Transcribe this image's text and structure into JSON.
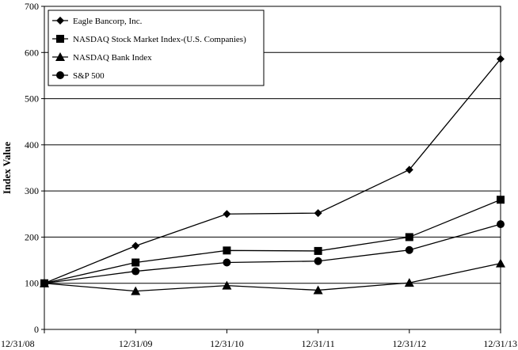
{
  "chart_data": {
    "type": "line",
    "title": "",
    "xlabel": "",
    "ylabel": "Index Value",
    "categories": [
      "12/31/08",
      "12/31/09",
      "12/31/10",
      "12/31/11",
      "12/31/12",
      "12/31/13"
    ],
    "ylim": [
      0,
      700
    ],
    "yticks": [
      0,
      100,
      200,
      300,
      400,
      500,
      600,
      700
    ],
    "grid": "horizontal",
    "legend_position": "top-left",
    "series": [
      {
        "name": "Eagle Bancorp, Inc.",
        "marker": "diamond",
        "values": [
          100,
          181,
          250,
          252,
          346,
          586
        ]
      },
      {
        "name": "NASDAQ Stock Market Index-(U.S. Companies)",
        "marker": "square",
        "values": [
          100,
          145,
          171,
          170,
          200,
          281
        ]
      },
      {
        "name": "NASDAQ Bank Index",
        "marker": "triangle",
        "values": [
          100,
          83,
          95,
          85,
          101,
          143
        ]
      },
      {
        "name": "S&P 500",
        "marker": "circle",
        "values": [
          100,
          126,
          145,
          148,
          172,
          228
        ]
      }
    ],
    "line_color": "#000000"
  }
}
